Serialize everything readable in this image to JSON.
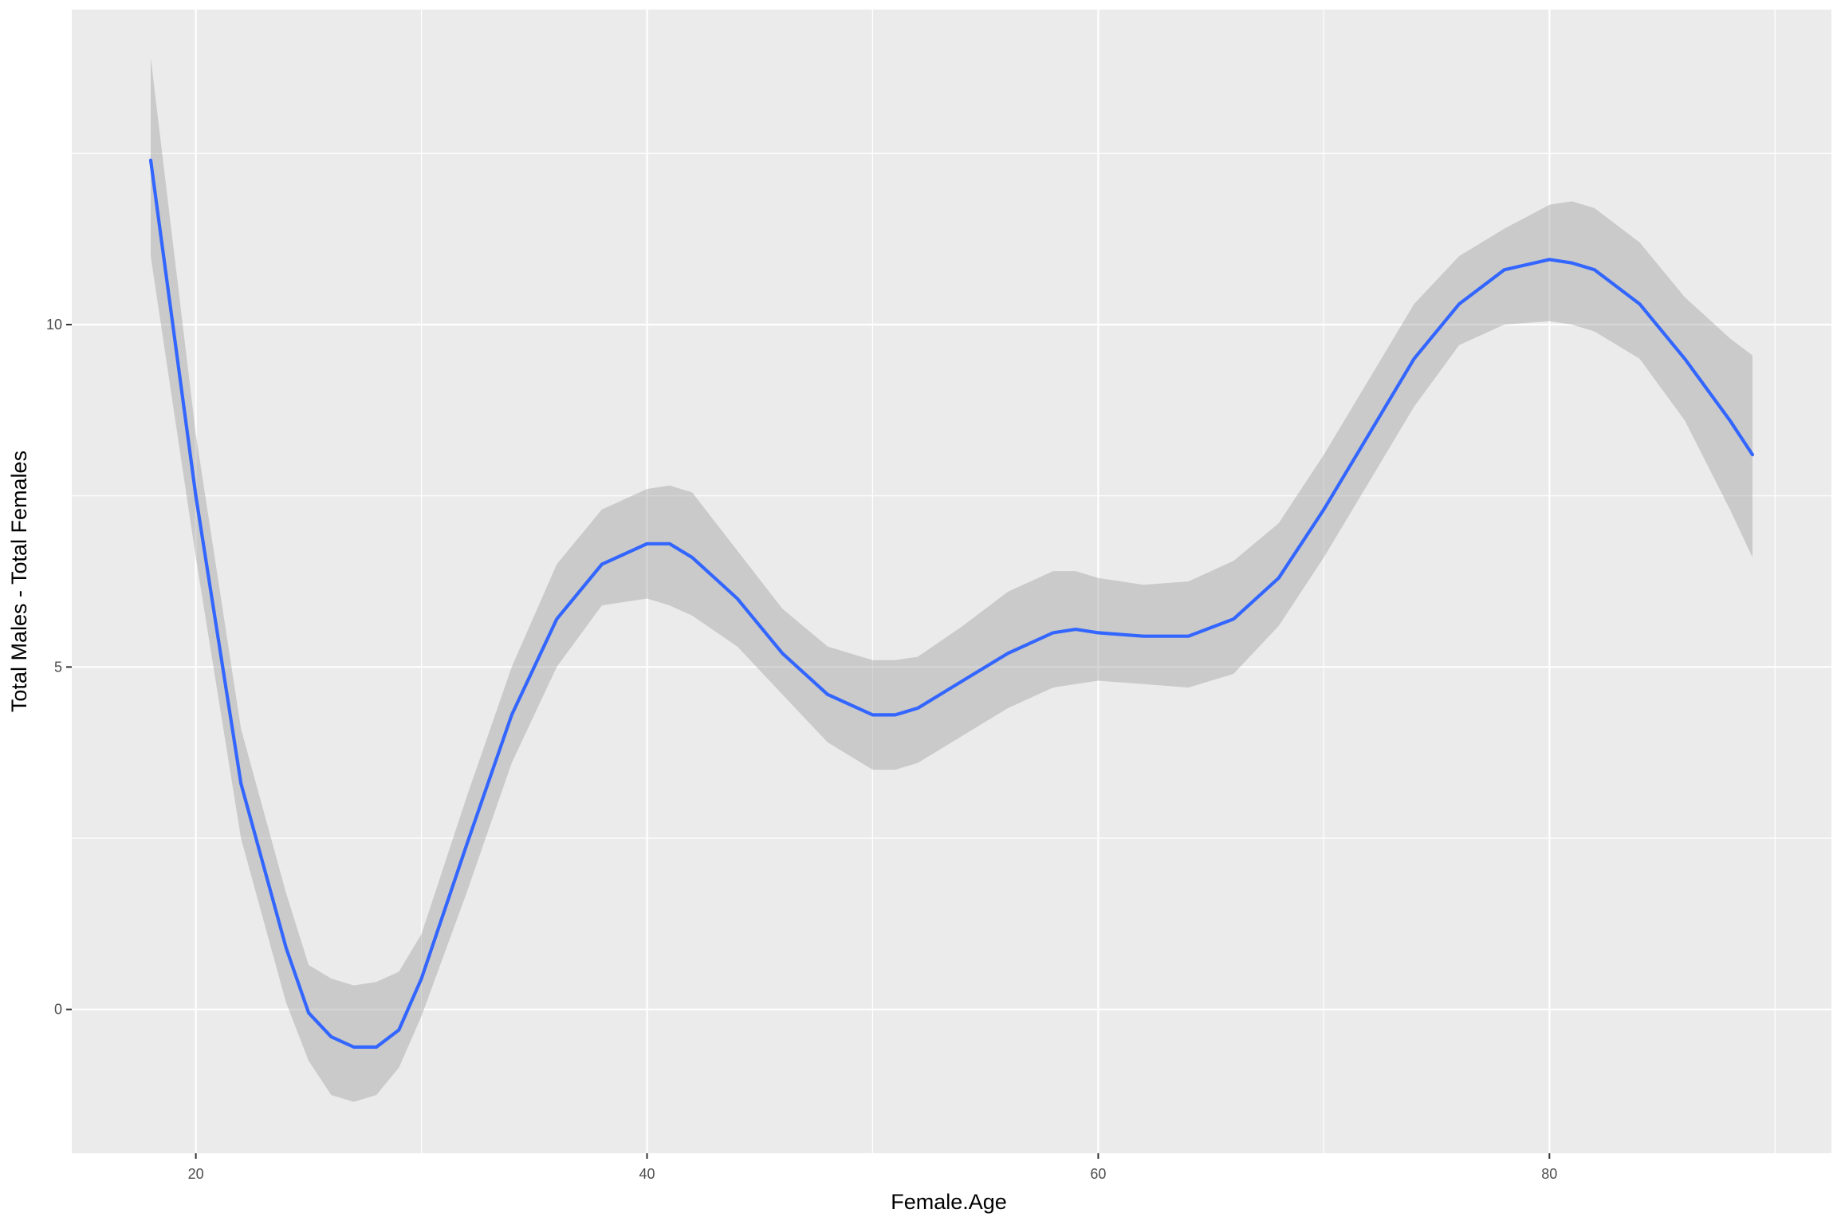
{
  "chart_data": {
    "type": "line",
    "title": "",
    "xlabel": "Female.Age",
    "ylabel": "Total Males - Total Females",
    "xlim": [
      14.5,
      92.5
    ],
    "ylim": [
      -2.1,
      14.6
    ],
    "x_ticks": [
      20,
      40,
      60,
      80
    ],
    "x_tick_labels": [
      "20",
      "40",
      "60",
      "80"
    ],
    "x_minor_ticks": [
      30,
      50,
      70,
      90
    ],
    "y_ticks": [
      0,
      5,
      10
    ],
    "y_tick_labels": [
      "0",
      "5",
      "10"
    ],
    "y_minor_ticks": [
      2.5,
      7.5,
      12.5
    ],
    "grid": true,
    "legend": "none",
    "colors": {
      "panel_background": "#ebebeb",
      "grid": "#ffffff",
      "line": "#3366ff",
      "ribbon": "#999999"
    },
    "series": [
      {
        "x": [
          18,
          20,
          22,
          24,
          25,
          26,
          27,
          28,
          29,
          30,
          32,
          34,
          36,
          38,
          40,
          41,
          42,
          44,
          46,
          48,
          50,
          51,
          52,
          54,
          56,
          58,
          59,
          60,
          62,
          64,
          66,
          68,
          70,
          72,
          74,
          76,
          78,
          80,
          81,
          82,
          84,
          86,
          88,
          89
        ],
        "y": [
          12.4,
          7.5,
          3.3,
          0.9,
          -0.05,
          -0.4,
          -0.55,
          -0.55,
          -0.3,
          0.45,
          2.4,
          4.3,
          5.7,
          6.5,
          6.8,
          6.8,
          6.6,
          6.0,
          5.2,
          4.6,
          4.3,
          4.3,
          4.4,
          4.8,
          5.2,
          5.5,
          5.55,
          5.5,
          5.45,
          5.45,
          5.7,
          6.3,
          7.3,
          8.4,
          9.5,
          10.3,
          10.8,
          10.95,
          10.9,
          10.8,
          10.3,
          9.5,
          8.6,
          8.1
        ],
        "lower": [
          11.0,
          6.6,
          2.5,
          0.1,
          -0.75,
          -1.25,
          -1.35,
          -1.25,
          -0.85,
          -0.1,
          1.7,
          3.6,
          5.0,
          5.9,
          6.0,
          5.9,
          5.75,
          5.3,
          4.6,
          3.9,
          3.5,
          3.5,
          3.6,
          4.0,
          4.4,
          4.7,
          4.75,
          4.8,
          4.75,
          4.7,
          4.9,
          5.6,
          6.6,
          7.7,
          8.8,
          9.7,
          10.0,
          10.05,
          10.0,
          9.9,
          9.5,
          8.6,
          7.3,
          6.6
        ],
        "upper": [
          13.9,
          8.4,
          4.1,
          1.7,
          0.65,
          0.45,
          0.35,
          0.4,
          0.55,
          1.1,
          3.1,
          5.0,
          6.5,
          7.3,
          7.6,
          7.65,
          7.55,
          6.7,
          5.85,
          5.3,
          5.1,
          5.1,
          5.15,
          5.6,
          6.1,
          6.4,
          6.4,
          6.3,
          6.2,
          6.25,
          6.55,
          7.1,
          8.1,
          9.2,
          10.3,
          11.0,
          11.4,
          11.75,
          11.8,
          11.7,
          11.2,
          10.4,
          9.8,
          9.55
        ]
      }
    ]
  }
}
